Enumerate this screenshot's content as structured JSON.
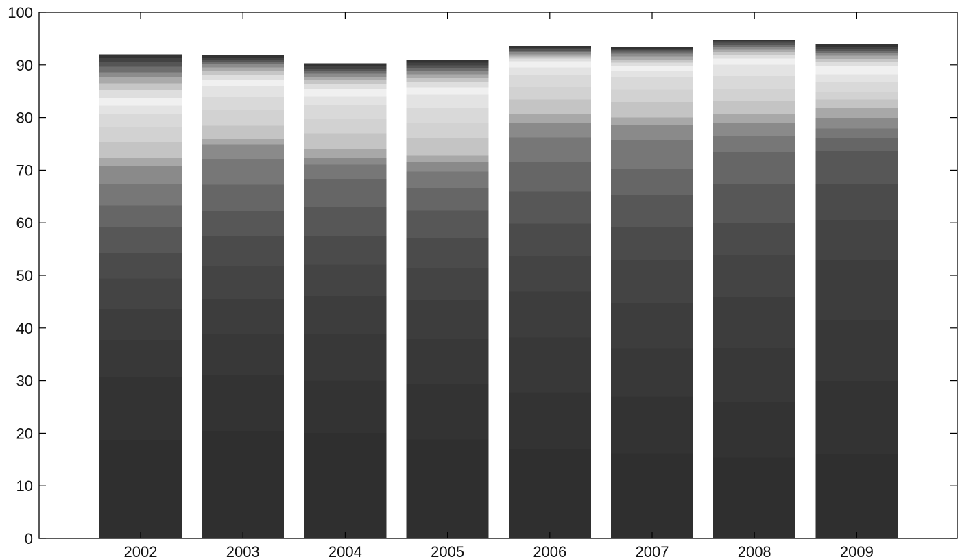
{
  "chart_data": {
    "type": "bar",
    "stacked": true,
    "color_scheme": "grayscale",
    "categories": [
      "2002",
      "2003",
      "2004",
      "2005",
      "2006",
      "2007",
      "2008",
      "2009"
    ],
    "ylim": [
      0,
      100
    ],
    "yticks": [
      0,
      10,
      20,
      30,
      40,
      50,
      60,
      70,
      80,
      90,
      100
    ],
    "xlabel": "",
    "ylabel": "",
    "title": "",
    "grid": false,
    "legend": "none",
    "segment_colors": [
      "#2f2f2f",
      "#333333",
      "#383838",
      "#3d3d3d",
      "#444444",
      "#4b4b4b",
      "#575757",
      "#666666",
      "#777777",
      "#8a8a8a",
      "#a8a8a8",
      "#c4c4c4",
      "#d2d2d2",
      "#d9d9d9",
      "#e3e3e3",
      "#f0f0f0",
      "#dedede",
      "#c6c6c6",
      "#aaaaaa",
      "#8c8c8c",
      "#6e6e6e",
      "#555555",
      "#424242",
      "#333333"
    ],
    "stacks": [
      {
        "category": "2002",
        "values": [
          18.8,
          11.9,
          7.1,
          5.9,
          5.8,
          4.8,
          4.9,
          4.2,
          4.0,
          3.5,
          1.5,
          3.0,
          2.8,
          2.6,
          1.5,
          1.5,
          1.5,
          1.3,
          1.1,
          1.0,
          1.0,
          0.9,
          0.8,
          0.6
        ]
      },
      {
        "category": "2003",
        "values": [
          20.5,
          10.6,
          7.8,
          6.7,
          6.2,
          5.7,
          4.8,
          5.0,
          4.9,
          2.8,
          1.0,
          2.5,
          3.0,
          2.5,
          2.0,
          1.2,
          1.0,
          0.8,
          0.6,
          0.6,
          0.5,
          0.4,
          0.4,
          0.4
        ]
      },
      {
        "category": "2004",
        "values": [
          20.1,
          10.0,
          8.9,
          7.2,
          5.9,
          5.5,
          5.5,
          5.2,
          2.8,
          1.4,
          1.6,
          3.0,
          2.8,
          2.5,
          1.7,
          1.4,
          0.9,
          0.8,
          0.6,
          0.6,
          0.5,
          0.5,
          0.4,
          0.5
        ]
      },
      {
        "category": "2005",
        "values": [
          18.9,
          10.6,
          8.5,
          7.4,
          6.1,
          5.7,
          5.2,
          4.3,
          3.1,
          1.9,
          1.2,
          3.2,
          2.9,
          3.0,
          2.5,
          1.3,
          1.0,
          0.8,
          0.7,
          0.6,
          0.6,
          0.5,
          0.5,
          0.5
        ]
      },
      {
        "category": "2006",
        "values": [
          17.0,
          10.9,
          10.4,
          8.7,
          6.7,
          6.2,
          6.1,
          5.6,
          4.7,
          2.8,
          1.6,
          2.8,
          2.4,
          2.2,
          1.5,
          1.2,
          0.5,
          0.4,
          0.4,
          0.4,
          0.3,
          0.3,
          0.2,
          0.3
        ]
      },
      {
        "category": "2007",
        "values": [
          16.3,
          10.8,
          9.1,
          8.7,
          8.2,
          6.1,
          6.1,
          5.1,
          5.4,
          2.8,
          1.5,
          2.9,
          2.4,
          2.3,
          1.2,
          1.0,
          0.6,
          0.6,
          0.6,
          0.5,
          0.4,
          0.3,
          0.3,
          0.3
        ]
      },
      {
        "category": "2008",
        "values": [
          15.5,
          10.5,
          10.3,
          9.7,
          8.0,
          6.1,
          7.3,
          6.1,
          3.1,
          2.5,
          1.6,
          2.5,
          2.3,
          2.5,
          2.1,
          1.2,
          0.7,
          0.5,
          0.5,
          0.5,
          0.4,
          0.4,
          0.3,
          0.2
        ]
      },
      {
        "category": "2009",
        "values": [
          16.2,
          13.8,
          11.6,
          11.5,
          7.5,
          6.9,
          6.3,
          2.3,
          1.9,
          2.0,
          2.0,
          1.5,
          1.5,
          1.8,
          1.5,
          1.5,
          0.8,
          0.6,
          0.6,
          0.5,
          0.5,
          0.4,
          0.4,
          0.4
        ]
      }
    ]
  }
}
